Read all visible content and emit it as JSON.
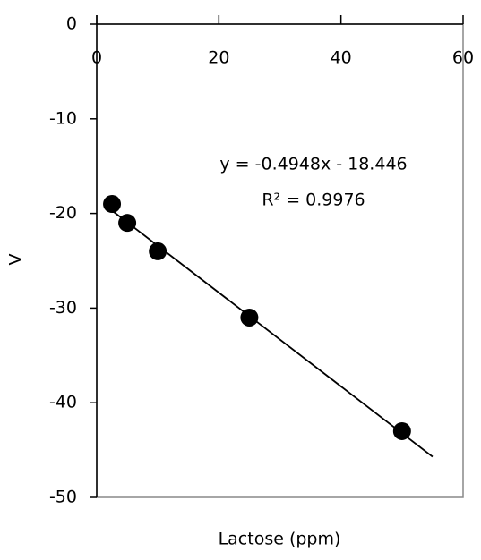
{
  "chart_data": {
    "type": "scatter",
    "x_label": "Lactose (ppm)",
    "y_label": "V",
    "series": [
      {
        "color": "#000000",
        "x": [
          2.5,
          5,
          10,
          25,
          50
        ],
        "values": [
          -19,
          -21,
          -24,
          -31,
          -43
        ]
      }
    ],
    "trendline": {
      "color": "#000000",
      "x": [
        2.5,
        55
      ],
      "values": [
        -19.7,
        -45.7
      ]
    },
    "annotations": [
      "y = -0.4948x - 18.446",
      "R² = 0.9976"
    ],
    "xlim": [
      0,
      60
    ],
    "xticks": [
      0,
      20,
      40,
      60
    ],
    "ylim": [
      -50,
      0
    ],
    "yticks": [
      0,
      -10,
      -20,
      -30,
      -40,
      -50
    ]
  }
}
